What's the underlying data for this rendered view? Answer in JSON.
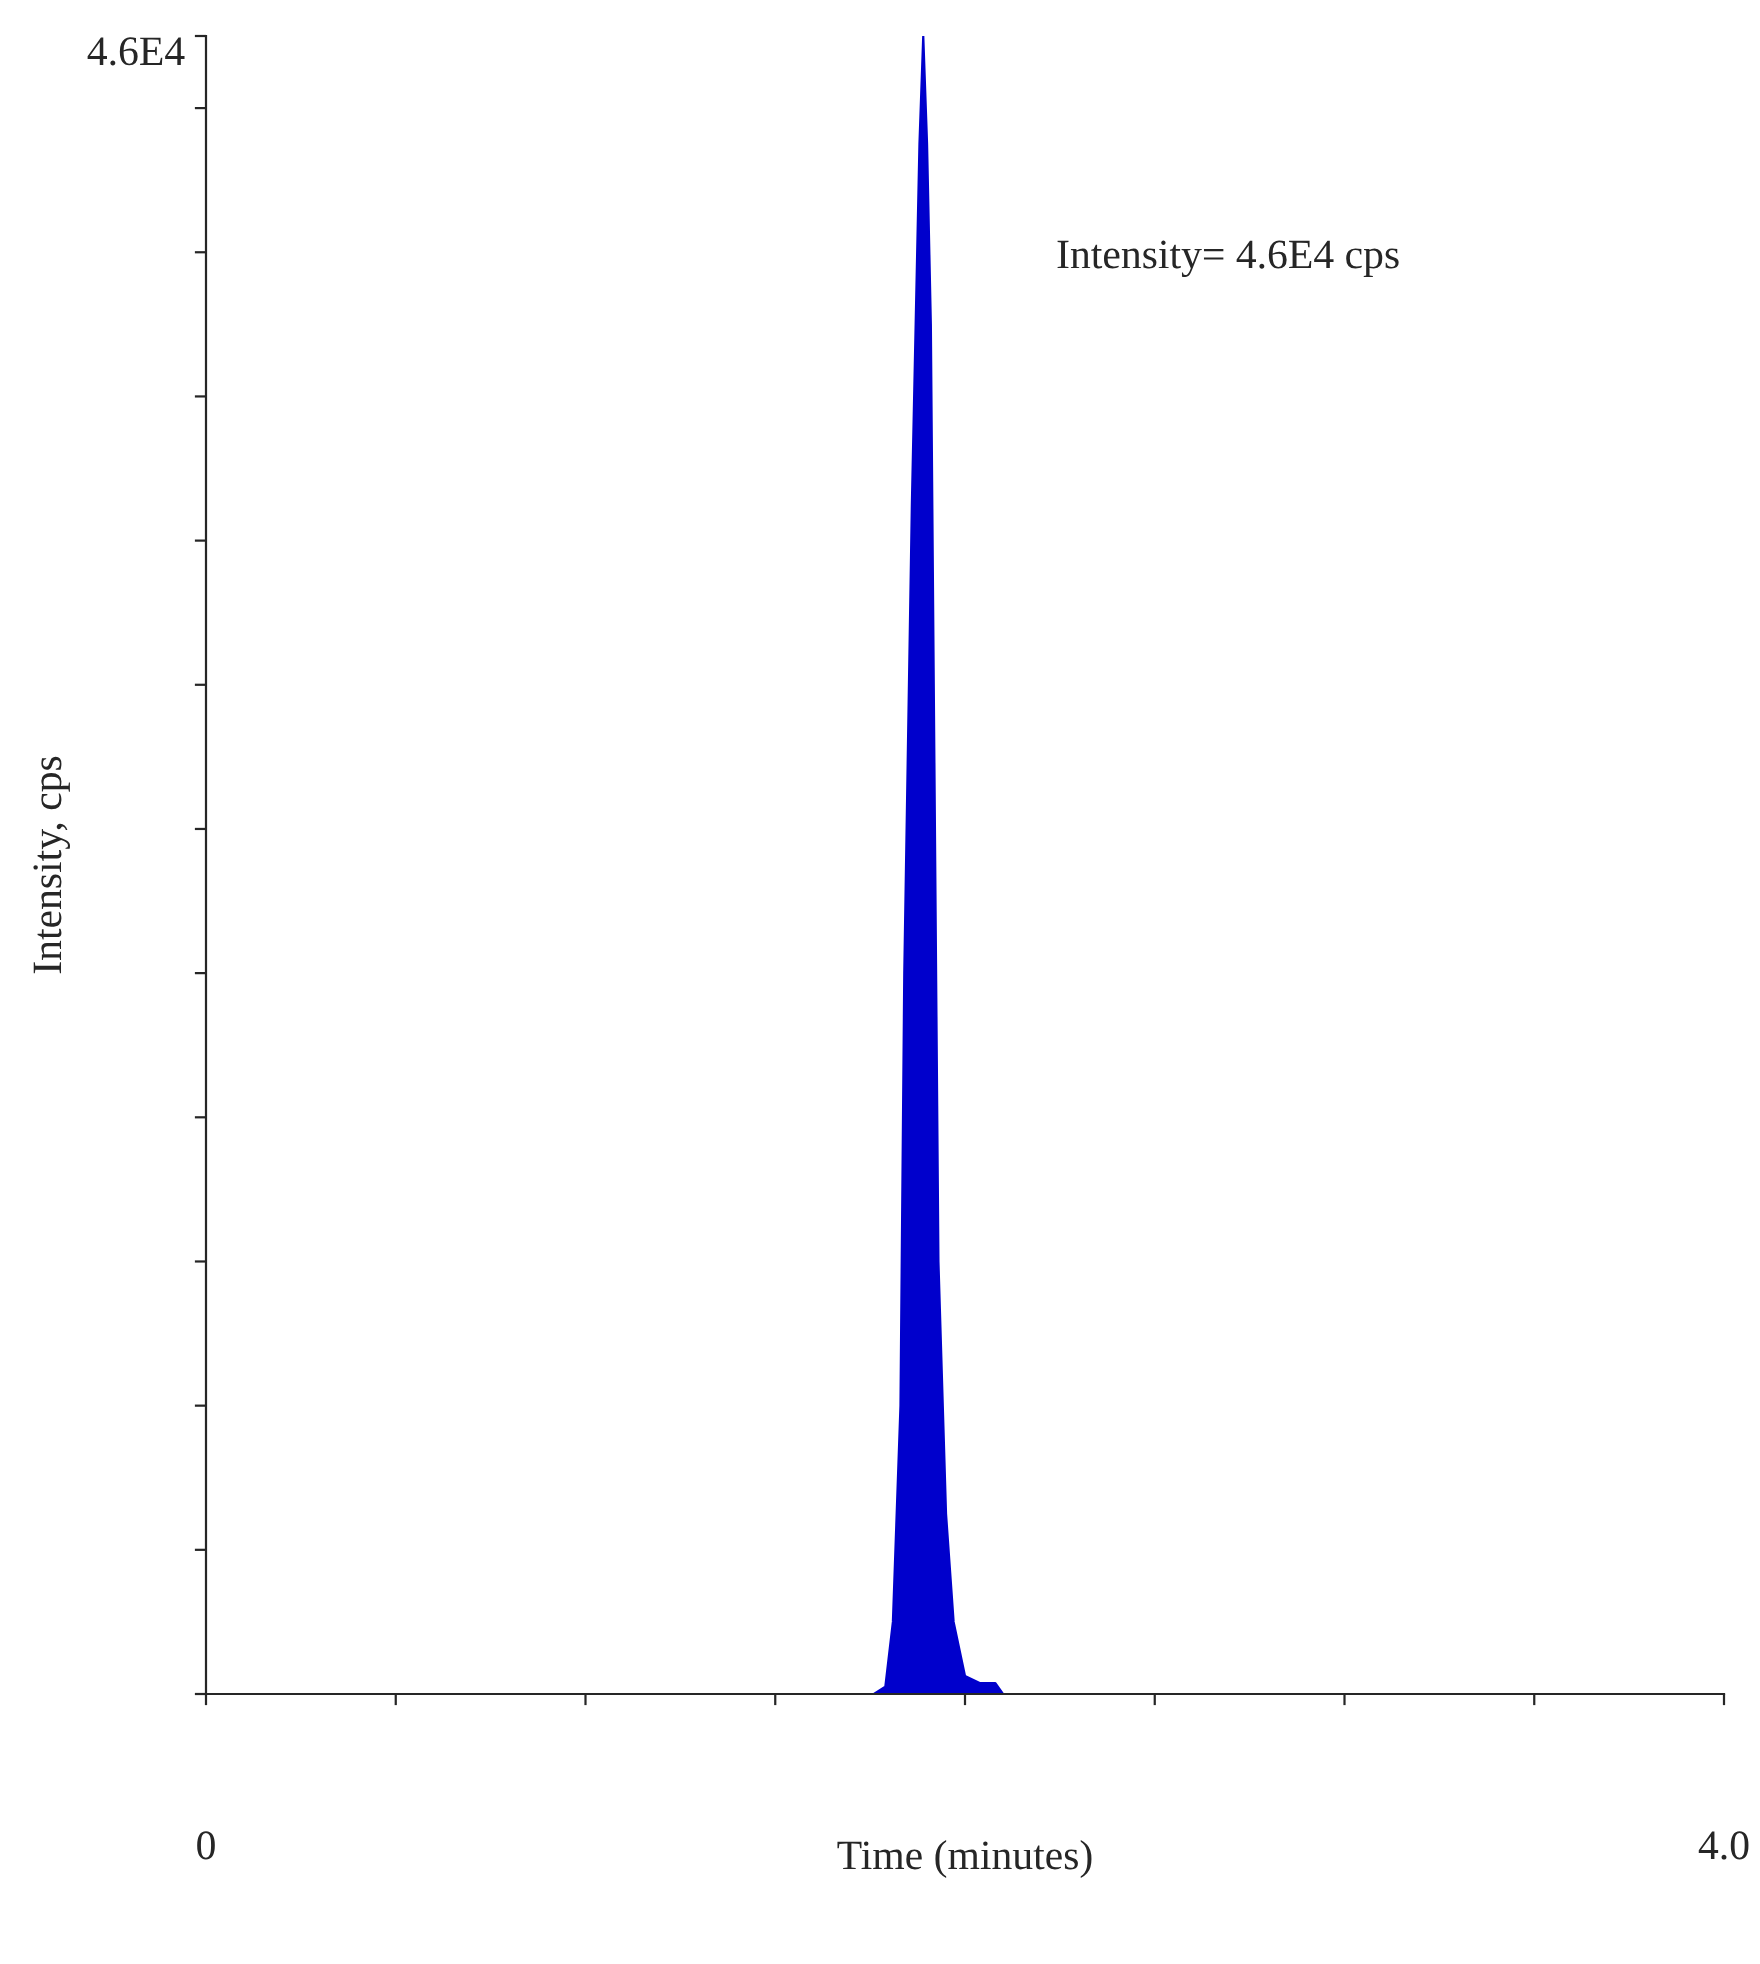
{
  "chart_data": {
    "type": "area",
    "xlabel": "Time (minutes)",
    "ylabel": "Intensity, cps",
    "annotations": [
      "Intensity= 4.6E4 cps"
    ],
    "x": [
      0,
      1.76,
      1.79,
      1.81,
      1.83,
      1.84,
      1.86,
      1.88,
      1.89,
      1.9,
      1.91,
      1.92,
      1.93,
      1.95,
      1.97,
      2.0,
      2.04,
      2.08,
      2.1,
      4.0
    ],
    "series": [
      {
        "color": "#0000cc",
        "values": [
          0,
          0,
          200,
          2000,
          8000,
          20000,
          33000,
          43000,
          46000,
          43000,
          38000,
          25000,
          12000,
          5000,
          2000,
          500,
          300,
          300,
          0,
          0
        ]
      }
    ],
    "xlim": [
      0,
      4.0
    ],
    "xticks": [
      0,
      {
        "value": 0.5,
        "label": null
      },
      {
        "value": 1.0,
        "label": null
      },
      {
        "value": 1.5,
        "label": null
      },
      {
        "value": 2.0,
        "label": null
      },
      {
        "value": 2.5,
        "label": null
      },
      {
        "value": 3.0,
        "label": null
      },
      {
        "value": 3.5,
        "label": null
      },
      {
        "value": 4.0,
        "label": "4.0"
      }
    ],
    "ylim": [
      0,
      46000
    ],
    "yticks": [
      {
        "value": 0,
        "label": null
      },
      {
        "value": 4000,
        "label": null
      },
      {
        "value": 8000,
        "label": null
      },
      {
        "value": 12000,
        "label": null
      },
      {
        "value": 16000,
        "label": null
      },
      {
        "value": 20000,
        "label": null
      },
      {
        "value": 24000,
        "label": null
      },
      {
        "value": 28000,
        "label": null
      },
      {
        "value": 32000,
        "label": null
      },
      {
        "value": 36000,
        "label": null
      },
      {
        "value": 40000,
        "label": null
      },
      {
        "value": 44000,
        "label": null
      },
      {
        "value": 46000,
        "label": "4.6E4"
      }
    ],
    "grid": false,
    "legend": false
  }
}
